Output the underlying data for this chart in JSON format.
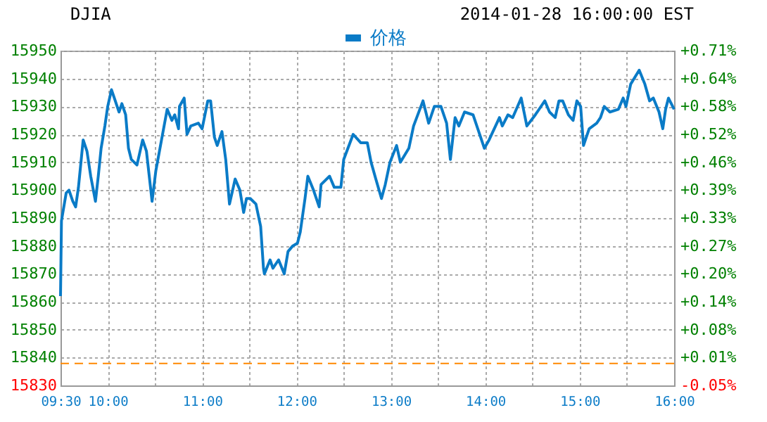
{
  "chart_data": {
    "type": "line",
    "title": "DJIA",
    "subtitle": "2014-01-28 16:00:00 EST",
    "x": [
      9.5,
      9.51,
      9.56,
      9.59,
      9.63,
      9.66,
      9.69,
      9.74,
      9.78,
      9.82,
      9.87,
      9.9,
      9.93,
      9.97,
      10.0,
      10.04,
      10.07,
      10.12,
      10.15,
      10.19,
      10.22,
      10.25,
      10.31,
      10.37,
      10.41,
      10.44,
      10.47,
      10.51,
      10.57,
      10.63,
      10.68,
      10.71,
      10.75,
      10.76,
      10.81,
      10.84,
      10.88,
      10.96,
      11.0,
      11.06,
      11.09,
      11.13,
      11.16,
      11.21,
      11.25,
      11.29,
      11.35,
      11.4,
      11.44,
      11.47,
      11.51,
      11.57,
      11.62,
      11.65,
      11.66,
      11.72,
      11.75,
      11.81,
      11.87,
      11.91,
      11.96,
      12.01,
      12.04,
      12.09,
      12.12,
      12.18,
      12.24,
      12.26,
      12.35,
      12.4,
      12.47,
      12.5,
      12.6,
      12.68,
      12.75,
      12.79,
      12.84,
      12.9,
      12.94,
      12.99,
      13.06,
      13.1,
      13.19,
      13.24,
      13.34,
      13.4,
      13.46,
      13.53,
      13.59,
      13.63,
      13.68,
      13.72,
      13.78,
      13.87,
      13.99,
      14.04,
      14.15,
      14.18,
      14.24,
      14.29,
      14.38,
      14.44,
      14.53,
      14.63,
      14.68,
      14.74,
      14.78,
      14.82,
      14.88,
      14.93,
      14.97,
      15.01,
      15.04,
      15.1,
      15.18,
      15.22,
      15.26,
      15.32,
      15.41,
      15.46,
      15.49,
      15.54,
      15.63,
      15.69,
      15.74,
      15.78,
      15.84,
      15.88,
      15.91,
      15.94,
      16.0
    ],
    "series": [
      {
        "name": "价格",
        "color": "#0a7bc7",
        "values": [
          15862,
          15889,
          15899,
          15900,
          15896,
          15894,
          15901,
          15918,
          15914,
          15905,
          15896,
          15905,
          15915,
          15923,
          15930,
          15936,
          15933,
          15928,
          15931,
          15927,
          15915,
          15911,
          15909,
          15918,
          15914,
          15905,
          15896,
          15907,
          15918,
          15929,
          15925,
          15927,
          15922,
          15930,
          15933,
          15920,
          15923,
          15924,
          15922,
          15932,
          15932,
          15919,
          15916,
          15921,
          15911,
          15895,
          15904,
          15900,
          15892,
          15897,
          15897,
          15895,
          15887,
          15872,
          15870,
          15875,
          15872,
          15875,
          15870,
          15878,
          15880,
          15881,
          15885,
          15897,
          15905,
          15900,
          15894,
          15902,
          15905,
          15901,
          15901,
          15911,
          15920,
          15917,
          15917,
          15910,
          15904,
          15897,
          15902,
          15910,
          15916,
          15910,
          15915,
          15923,
          15932,
          15924,
          15930,
          15930,
          15924,
          15911,
          15926,
          15923,
          15928,
          15927,
          15915,
          15918,
          15926,
          15923,
          15927,
          15926,
          15933,
          15923,
          15927,
          15932,
          15928,
          15926,
          15932,
          15932,
          15927,
          15925,
          15932,
          15930,
          15916,
          15922,
          15924,
          15926,
          15930,
          15928,
          15929,
          15933,
          15930,
          15938,
          15943,
          15938,
          15932,
          15933,
          15928,
          15922,
          15929,
          15933,
          15929
        ]
      }
    ],
    "xlim": [
      9.5,
      16
    ],
    "xticks": [
      {
        "value": 9.5,
        "label": "09:30"
      },
      {
        "value": 10,
        "label": "10:00"
      },
      {
        "value": 10.5,
        "label": null
      },
      {
        "value": 11,
        "label": "11:00"
      },
      {
        "value": 11.5,
        "label": null
      },
      {
        "value": 12,
        "label": "12:00"
      },
      {
        "value": 12.5,
        "label": null
      },
      {
        "value": 13,
        "label": "13:00"
      },
      {
        "value": 13.5,
        "label": null
      },
      {
        "value": 14,
        "label": "14:00"
      },
      {
        "value": 14.5,
        "label": null
      },
      {
        "value": 15,
        "label": "15:00"
      },
      {
        "value": 15.5,
        "label": null
      },
      {
        "value": 16,
        "label": "16:00"
      }
    ],
    "ylim": [
      15830,
      15950
    ],
    "yticks": [
      15830,
      15840,
      15850,
      15860,
      15870,
      15880,
      15890,
      15900,
      15910,
      15920,
      15930,
      15940,
      15950
    ],
    "y2lim": [
      -0.0499,
      0.7079
    ],
    "y2ticks": [
      {
        "value": -0.0499,
        "label": "-0.05%"
      },
      {
        "value": 0.0133,
        "label": "+0.01%"
      },
      {
        "value": 0.0764,
        "label": "+0.08%"
      },
      {
        "value": 0.1396,
        "label": "+0.14%"
      },
      {
        "value": 0.2027,
        "label": "+0.20%"
      },
      {
        "value": 0.2659,
        "label": "+0.27%"
      },
      {
        "value": 0.329,
        "label": "+0.33%"
      },
      {
        "value": 0.3921,
        "label": "+0.39%"
      },
      {
        "value": 0.4553,
        "label": "+0.46%"
      },
      {
        "value": 0.5184,
        "label": "+0.52%"
      },
      {
        "value": 0.5816,
        "label": "+0.58%"
      },
      {
        "value": 0.6447,
        "label": "+0.64%"
      },
      {
        "value": 0.7079,
        "label": "+0.71%"
      }
    ],
    "ref_lines": [
      {
        "axis": "y2",
        "value": 0,
        "color": "#ff8800",
        "line_style": "dashed"
      }
    ],
    "grid": true,
    "legend": "top",
    "line_style": "solid",
    "marker": "none"
  }
}
